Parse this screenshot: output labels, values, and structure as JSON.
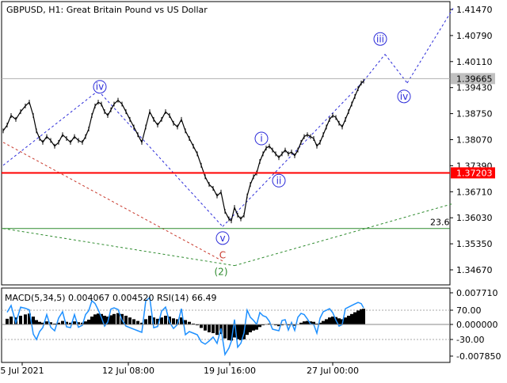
{
  "header": {
    "symbol": "GBPUSD",
    "timeframe": "H1:",
    "description": "Great Britain Pound vs US Dollar"
  },
  "chart_data": [
    {
      "type": "line",
      "title": "GBPUSD, H1:  Great Britain Pound vs US Dollar",
      "price_axis_ticks": [
        "1.41470",
        "1.40790",
        "1.40110",
        "1.39430",
        "1.38750",
        "1.38070",
        "1.37390",
        "1.36710",
        "1.36030",
        "1.35350",
        "1.34670"
      ],
      "ylim": [
        1.3425,
        1.4165
      ],
      "x_ticks": [
        "5 Jul 2021",
        "12 Jul 08:00",
        "19 Jul 16:00",
        "27 Jul 00:00"
      ],
      "current_price": "1.39665",
      "level_line": "1.37203",
      "fib_label": "23.6",
      "price_series": [
        [
          0,
          1.383
        ],
        [
          5,
          1.3845
        ],
        [
          10,
          1.387
        ],
        [
          16,
          1.386
        ],
        [
          22,
          1.388
        ],
        [
          28,
          1.3895
        ],
        [
          33,
          1.3905
        ],
        [
          38,
          1.387
        ],
        [
          42,
          1.383
        ],
        [
          46,
          1.381
        ],
        [
          50,
          1.38
        ],
        [
          55,
          1.3815
        ],
        [
          60,
          1.3805
        ],
        [
          65,
          1.379
        ],
        [
          70,
          1.38
        ],
        [
          75,
          1.382
        ],
        [
          80,
          1.381
        ],
        [
          85,
          1.38
        ],
        [
          90,
          1.3815
        ],
        [
          95,
          1.3805
        ],
        [
          100,
          1.38
        ],
        [
          104,
          1.3815
        ],
        [
          108,
          1.3835
        ],
        [
          112,
          1.387
        ],
        [
          116,
          1.3895
        ],
        [
          120,
          1.3905
        ],
        [
          124,
          1.39
        ],
        [
          128,
          1.388
        ],
        [
          132,
          1.387
        ],
        [
          136,
          1.3885
        ],
        [
          140,
          1.39
        ],
        [
          145,
          1.391
        ],
        [
          150,
          1.39
        ],
        [
          155,
          1.388
        ],
        [
          160,
          1.386
        ],
        [
          165,
          1.384
        ],
        [
          170,
          1.382
        ],
        [
          175,
          1.38
        ],
        [
          180,
          1.384
        ],
        [
          185,
          1.388
        ],
        [
          190,
          1.386
        ],
        [
          195,
          1.3845
        ],
        [
          200,
          1.386
        ],
        [
          205,
          1.388
        ],
        [
          210,
          1.387
        ],
        [
          215,
          1.385
        ],
        [
          220,
          1.384
        ],
        [
          225,
          1.386
        ],
        [
          230,
          1.383
        ],
        [
          235,
          1.381
        ],
        [
          240,
          1.379
        ],
        [
          245,
          1.377
        ],
        [
          250,
          1.374
        ],
        [
          255,
          1.371
        ],
        [
          260,
          1.369
        ],
        [
          265,
          1.368
        ],
        [
          270,
          1.366
        ],
        [
          275,
          1.367
        ],
        [
          280,
          1.362
        ],
        [
          285,
          1.36
        ],
        [
          288,
          1.3595
        ],
        [
          292,
          1.363
        ],
        [
          296,
          1.361
        ],
        [
          300,
          1.36
        ],
        [
          304,
          1.361
        ],
        [
          308,
          1.366
        ],
        [
          312,
          1.369
        ],
        [
          316,
          1.371
        ],
        [
          320,
          1.372
        ],
        [
          324,
          1.375
        ],
        [
          328,
          1.377
        ],
        [
          332,
          1.3785
        ],
        [
          336,
          1.379
        ],
        [
          340,
          1.378
        ],
        [
          344,
          1.377
        ],
        [
          348,
          1.376
        ],
        [
          352,
          1.377
        ],
        [
          356,
          1.378
        ],
        [
          360,
          1.377
        ],
        [
          364,
          1.3775
        ],
        [
          368,
          1.3765
        ],
        [
          372,
          1.378
        ],
        [
          376,
          1.38
        ],
        [
          380,
          1.3815
        ],
        [
          384,
          1.382
        ],
        [
          388,
          1.3815
        ],
        [
          392,
          1.381
        ],
        [
          396,
          1.379
        ],
        [
          400,
          1.38
        ],
        [
          404,
          1.382
        ],
        [
          408,
          1.384
        ],
        [
          412,
          1.386
        ],
        [
          416,
          1.387
        ],
        [
          420,
          1.3865
        ],
        [
          424,
          1.385
        ],
        [
          428,
          1.384
        ],
        [
          432,
          1.386
        ],
        [
          436,
          1.388
        ],
        [
          440,
          1.39
        ],
        [
          444,
          1.392
        ],
        [
          448,
          1.394
        ],
        [
          452,
          1.3955
        ],
        [
          455,
          1.396
        ]
      ],
      "projection": [
        [
          455,
          1.396
        ],
        [
          482,
          1.403
        ],
        [
          510,
          1.3955
        ],
        [
          568,
          1.415
        ]
      ],
      "wave_labels": [
        "iv",
        "i",
        "ii",
        "v",
        "C",
        "(2)",
        "iii",
        "iv"
      ]
    },
    {
      "type": "line",
      "title": "MACD(5,34,5) 0.004067 0.004520 RSI(14) 66.49",
      "axis_ticks": [
        "0.007710",
        "70.00",
        "0.000000",
        "-30.00",
        "-0.007850"
      ],
      "ylim": [
        -0.00785,
        0.00771
      ],
      "x_ticks": [
        "5 Jul 2021",
        "12 Jul 08:00",
        "19 Jul 16:00",
        "27 Jul 00:00"
      ],
      "macd_indicator": "MACD(5,34,5)",
      "macd_main": 0.004067,
      "macd_signal": 0.00452,
      "rsi_indicator": "RSI(14)",
      "rsi_value": 66.49
    }
  ],
  "colors": {
    "price": "#000000",
    "level_line": "#ff0000",
    "current_line": "#b0b0b0",
    "wave_blue": "#2b2bd9",
    "wave_red": "#c8382b",
    "wave_green": "#2e8b2e",
    "rsi": "#1e90ff"
  }
}
